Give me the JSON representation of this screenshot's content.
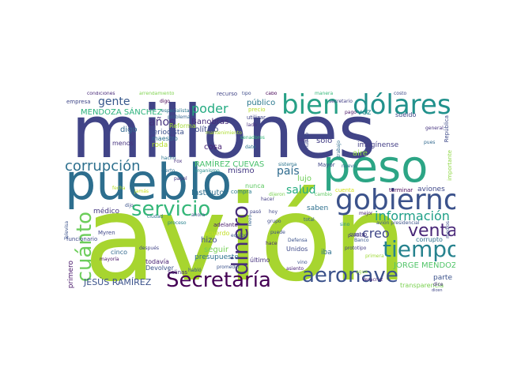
{
  "words": [
    {
      "text": "millones",
      "color": "#414487"
    },
    {
      "text": "avión",
      "color": "#a7d52f"
    },
    {
      "text": "pueblo",
      "color": "#2d6e8e"
    },
    {
      "text": "peso",
      "color": "#2ca585"
    },
    {
      "text": "bien",
      "color": "#27a086"
    },
    {
      "text": "dólares",
      "color": "#21918c"
    },
    {
      "text": "gobierno",
      "color": "#3b528b"
    },
    {
      "text": "servicio",
      "color": "#35b779"
    },
    {
      "text": "Secretaría",
      "color": "#440154"
    },
    {
      "text": "aeronave",
      "color": "#3b528b"
    },
    {
      "text": "tiempo",
      "color": "#26828e"
    },
    {
      "text": "venta",
      "color": "#482677"
    },
    {
      "text": "dinero",
      "color": "#472d7b"
    },
    {
      "text": "cuánto",
      "color": "#6ccd5a"
    },
    {
      "text": "corrupción",
      "color": "#2d708e"
    },
    {
      "text": "información",
      "color": "#1fa088"
    },
    {
      "text": "creo",
      "color": "#3f4788"
    },
    {
      "text": "poder",
      "color": "#25ab82"
    },
    {
      "text": "gente",
      "color": "#38588c"
    },
    {
      "text": "años",
      "color": "#46327e"
    },
    {
      "text": "país",
      "color": "#2f6b8e"
    },
    {
      "text": "salud",
      "color": "#26ad81"
    },
    {
      "text": "JESÚS RAMÍREZ",
      "color": "#3b528b"
    },
    {
      "text": "MENDOZA SÁNCHEZ",
      "color": "#2db27d"
    },
    {
      "text": "RAMÍREZ CUEVAS",
      "color": "#4ac16d"
    },
    {
      "text": "JORGE MENDOZA",
      "color": "#52c569"
    },
    {
      "text": "político",
      "color": "#3e4a89"
    },
    {
      "text": "Banobras",
      "color": "#472c7a"
    },
    {
      "text": "Instituto",
      "color": "#2e6e8e"
    },
    {
      "text": "público",
      "color": "#2a788e"
    },
    {
      "text": "digo",
      "color": "#31688e"
    },
    {
      "text": "periodista",
      "color": "#3c508b"
    },
    {
      "text": "Reforma",
      "color": "#a5db36"
    },
    {
      "text": "maestro",
      "color": "#2c718e"
    },
    {
      "text": "menos",
      "color": "#46337f"
    },
    {
      "text": "cosa",
      "color": "#482475"
    },
    {
      "text": "roda",
      "color": "#b5de2b"
    },
    {
      "text": "mismo",
      "color": "#443983"
    },
    {
      "text": "lujo",
      "color": "#6ece58"
    },
    {
      "text": "nunca",
      "color": "#5ec962"
    },
    {
      "text": "saben",
      "color": "#2d708e"
    },
    {
      "text": "imagínense",
      "color": "#433e85"
    },
    {
      "text": "aviones",
      "color": "#3f4889"
    },
    {
      "text": "terminar",
      "color": "#440154"
    },
    {
      "text": "médico",
      "color": "#453781"
    },
    {
      "text": "seguir",
      "color": "#75d054"
    },
    {
      "text": "acuerdo",
      "color": "#c2df23"
    },
    {
      "text": "hizo",
      "color": "#3e4c8a"
    },
    {
      "text": "presupuesto",
      "color": "#2c728e"
    },
    {
      "text": "todavía",
      "color": "#482173"
    },
    {
      "text": "Devolver",
      "color": "#3b528b"
    },
    {
      "text": "cinco",
      "color": "#31688e"
    },
    {
      "text": "primero",
      "color": "#481769"
    },
    {
      "text": "Unidos",
      "color": "#3e4989"
    },
    {
      "text": "último",
      "color": "#46327e"
    },
    {
      "text": "iba",
      "color": "#2d708e"
    },
    {
      "text": "parte",
      "color": "#3b528b"
    },
    {
      "text": "transparencia",
      "color": "#7ad151"
    },
    {
      "text": "corrupto",
      "color": "#2e6f8e"
    },
    {
      "text": "cuatro",
      "color": "#433e85"
    },
    {
      "text": "vez",
      "color": "#24868e"
    },
    {
      "text": "sueldo",
      "color": "#3f4788"
    },
    {
      "text": "utilizar",
      "color": "#404588"
    },
    {
      "text": "funcionario",
      "color": "#3e4989"
    },
    {
      "text": "adelante",
      "color": "#481a6c"
    },
    {
      "text": "compra",
      "color": "#297b8e"
    },
    {
      "text": "Salinas",
      "color": "#472d7b"
    },
    {
      "text": "Mayor",
      "color": "#3f4788"
    },
    {
      "text": "casi",
      "color": "#453882"
    },
    {
      "text": "recurso",
      "color": "#414487"
    },
    {
      "text": "tipo",
      "color": "#3e4c8a"
    },
    {
      "text": "cabo",
      "color": "#440154"
    },
    {
      "text": "manera",
      "color": "#35b779"
    },
    {
      "text": "costo",
      "color": "#3e4a89"
    },
    {
      "text": "condiciones",
      "color": "#482878"
    },
    {
      "text": "arrendamiento",
      "color": "#7fd34e"
    },
    {
      "text": "empresa",
      "color": "#3f4788"
    },
    {
      "text": "digo",
      "color": "#440154"
    },
    {
      "text": "especialista",
      "color": "#2a768e"
    },
    {
      "text": "secretario",
      "color": "#423f85"
    },
    {
      "text": "República",
      "color": "#3e4a89"
    },
    {
      "text": "general",
      "color": "#46337f"
    },
    {
      "text": "importante",
      "color": "#8fd744"
    },
    {
      "text": "Defensa",
      "color": "#3b528b"
    },
    {
      "text": "prototipo",
      "color": "#433d84"
    },
    {
      "text": "Banco",
      "color": "#39568c"
    },
    {
      "text": "Veracruz",
      "color": "#482475"
    },
    {
      "text": "Televisa",
      "color": "#3b528b"
    },
    {
      "text": "medios",
      "color": "#3e4c8a"
    },
    {
      "text": "mayoría",
      "color": "#481467"
    },
    {
      "text": "Myren",
      "color": "#3f4788"
    },
    {
      "text": "hacho",
      "color": "#2c738e"
    },
    {
      "text": "papel",
      "color": "#46327e"
    },
    {
      "text": "cierto",
      "color": "#2e6d8e"
    },
    {
      "text": "organismo",
      "color": "#228c8d"
    },
    {
      "text": "proceso",
      "color": "#26828e"
    },
    {
      "text": "jamás",
      "color": "#c8e020"
    },
    {
      "text": "dijo",
      "color": "#3b528b"
    },
    {
      "text": "dice",
      "color": "#472c7a"
    },
    {
      "text": "pago",
      "color": "#471164"
    },
    {
      "text": "cuenta",
      "color": "#d2e21b"
    },
    {
      "text": "mejor",
      "color": "#482071"
    },
    {
      "text": "hoy",
      "color": "#3f4788"
    },
    {
      "text": "vino",
      "color": "#3b528b"
    },
    {
      "text": "llevó",
      "color": "#33638d"
    },
    {
      "text": "asiento",
      "color": "#482173"
    },
    {
      "text": "aire",
      "color": "#90d743"
    },
    {
      "text": "precio",
      "color": "#b8de29"
    },
    {
      "text": "pasó",
      "color": "#404588"
    },
    {
      "text": "dato",
      "color": "#2b758e"
    },
    {
      "text": "sólo",
      "color": "#433e85"
    },
    {
      "text": "Rubalo",
      "color": "#3e4989"
    },
    {
      "text": "trabajo",
      "color": "#2e6e8e"
    },
    {
      "text": "problema",
      "color": "#33638d"
    },
    {
      "text": "sistema",
      "color": "#2b748e"
    },
    {
      "text": "habló",
      "color": "#39558c"
    },
    {
      "text": "avión presidencial",
      "color": "#3b528b"
    },
    {
      "text": "política",
      "color": "#453781"
    },
    {
      "text": "después",
      "color": "#414487"
    },
    {
      "text": "primera",
      "color": "#a0da39"
    },
    {
      "text": "senadores",
      "color": "#35b779"
    },
    {
      "text": "agua",
      "color": "#95d840"
    },
    {
      "text": "promedio",
      "color": "#3b528b"
    },
    {
      "text": "mantenimiento",
      "color": "#addc30"
    },
    {
      "text": "ciudad",
      "color": "#2d708e"
    },
    {
      "text": "fecha",
      "color": "#b5de2b"
    },
    {
      "text": "Fox",
      "color": "#46307e"
    },
    {
      "text": "pues",
      "color": "#31688e"
    },
    {
      "text": "dicen",
      "color": "#404688"
    },
    {
      "text": "cambio",
      "color": "#5ec962"
    },
    {
      "text": "equipo",
      "color": "#3b528b"
    },
    {
      "text": "grupo",
      "color": "#3e4a89"
    },
    {
      "text": "hace",
      "color": "#482979"
    },
    {
      "text": "nuevo",
      "color": "#2f6c8e"
    },
    {
      "text": "sino",
      "color": "#21918c"
    },
    {
      "text": "puede",
      "color": "#3d4e8a"
    },
    {
      "text": "hacer",
      "color": "#433d84"
    },
    {
      "text": "total",
      "color": "#365c8d"
    },
    {
      "text": "lado",
      "color": "#46307e"
    },
    {
      "text": "ahora",
      "color": "#3b528b"
    },
    {
      "text": "dijeron",
      "color": "#7ad151"
    }
  ]
}
